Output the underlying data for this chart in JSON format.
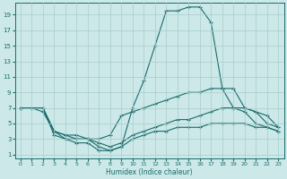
{
  "xlabel": "Humidex (Indice chaleur)",
  "xlim": [
    -0.5,
    23.5
  ],
  "ylim": [
    0.5,
    20.5
  ],
  "xticks": [
    0,
    1,
    2,
    3,
    4,
    5,
    6,
    7,
    8,
    9,
    10,
    11,
    12,
    13,
    14,
    15,
    16,
    17,
    18,
    19,
    20,
    21,
    22,
    23
  ],
  "yticks": [
    1,
    3,
    5,
    7,
    9,
    11,
    13,
    15,
    17,
    19
  ],
  "bg_color": "#cce8e8",
  "line_color": "#1a6b6b",
  "grid_color": "#aacccc",
  "line1_x": [
    0,
    1,
    2,
    3,
    4,
    5,
    6,
    7,
    8,
    9,
    10,
    11,
    12,
    13,
    14,
    15,
    16,
    17,
    18,
    19,
    20,
    21,
    22,
    23
  ],
  "line1_y": [
    7,
    7,
    6.5,
    4,
    3,
    3,
    3,
    2,
    1.5,
    2,
    7,
    10.5,
    15,
    19.5,
    19.5,
    20,
    20,
    18,
    9.5,
    7,
    6.5,
    5,
    4.5,
    4
  ],
  "line2_x": [
    0,
    2,
    3,
    4,
    5,
    6,
    7,
    8,
    9,
    10,
    11,
    12,
    13,
    14,
    15,
    16,
    17,
    18,
    19,
    20,
    21,
    22,
    23
  ],
  "line2_y": [
    7,
    7,
    4,
    3.5,
    3,
    3,
    3,
    3.5,
    6,
    6.5,
    7,
    7.5,
    8,
    8.5,
    9,
    9,
    9.5,
    9.5,
    9.5,
    7,
    6.5,
    6,
    4.5
  ],
  "line3_x": [
    0,
    2,
    3,
    4,
    5,
    6,
    7,
    8,
    9,
    10,
    11,
    12,
    13,
    14,
    15,
    16,
    17,
    18,
    19,
    20,
    21,
    22,
    23
  ],
  "line3_y": [
    7,
    7,
    4,
    3.5,
    3.5,
    3,
    2.5,
    2,
    2.5,
    3.5,
    4,
    4.5,
    5,
    5.5,
    5.5,
    6,
    6.5,
    7,
    7,
    7,
    6.5,
    5,
    4.5
  ],
  "line4_x": [
    0,
    2,
    3,
    4,
    5,
    6,
    7,
    8,
    9,
    10,
    11,
    12,
    13,
    14,
    15,
    16,
    17,
    18,
    19,
    20,
    21,
    22,
    23
  ],
  "line4_y": [
    7,
    7,
    3.5,
    3,
    2.5,
    2.5,
    1.5,
    1.5,
    2,
    3,
    3.5,
    4,
    4,
    4.5,
    4.5,
    4.5,
    5,
    5,
    5,
    5,
    4.5,
    4.5,
    4
  ]
}
